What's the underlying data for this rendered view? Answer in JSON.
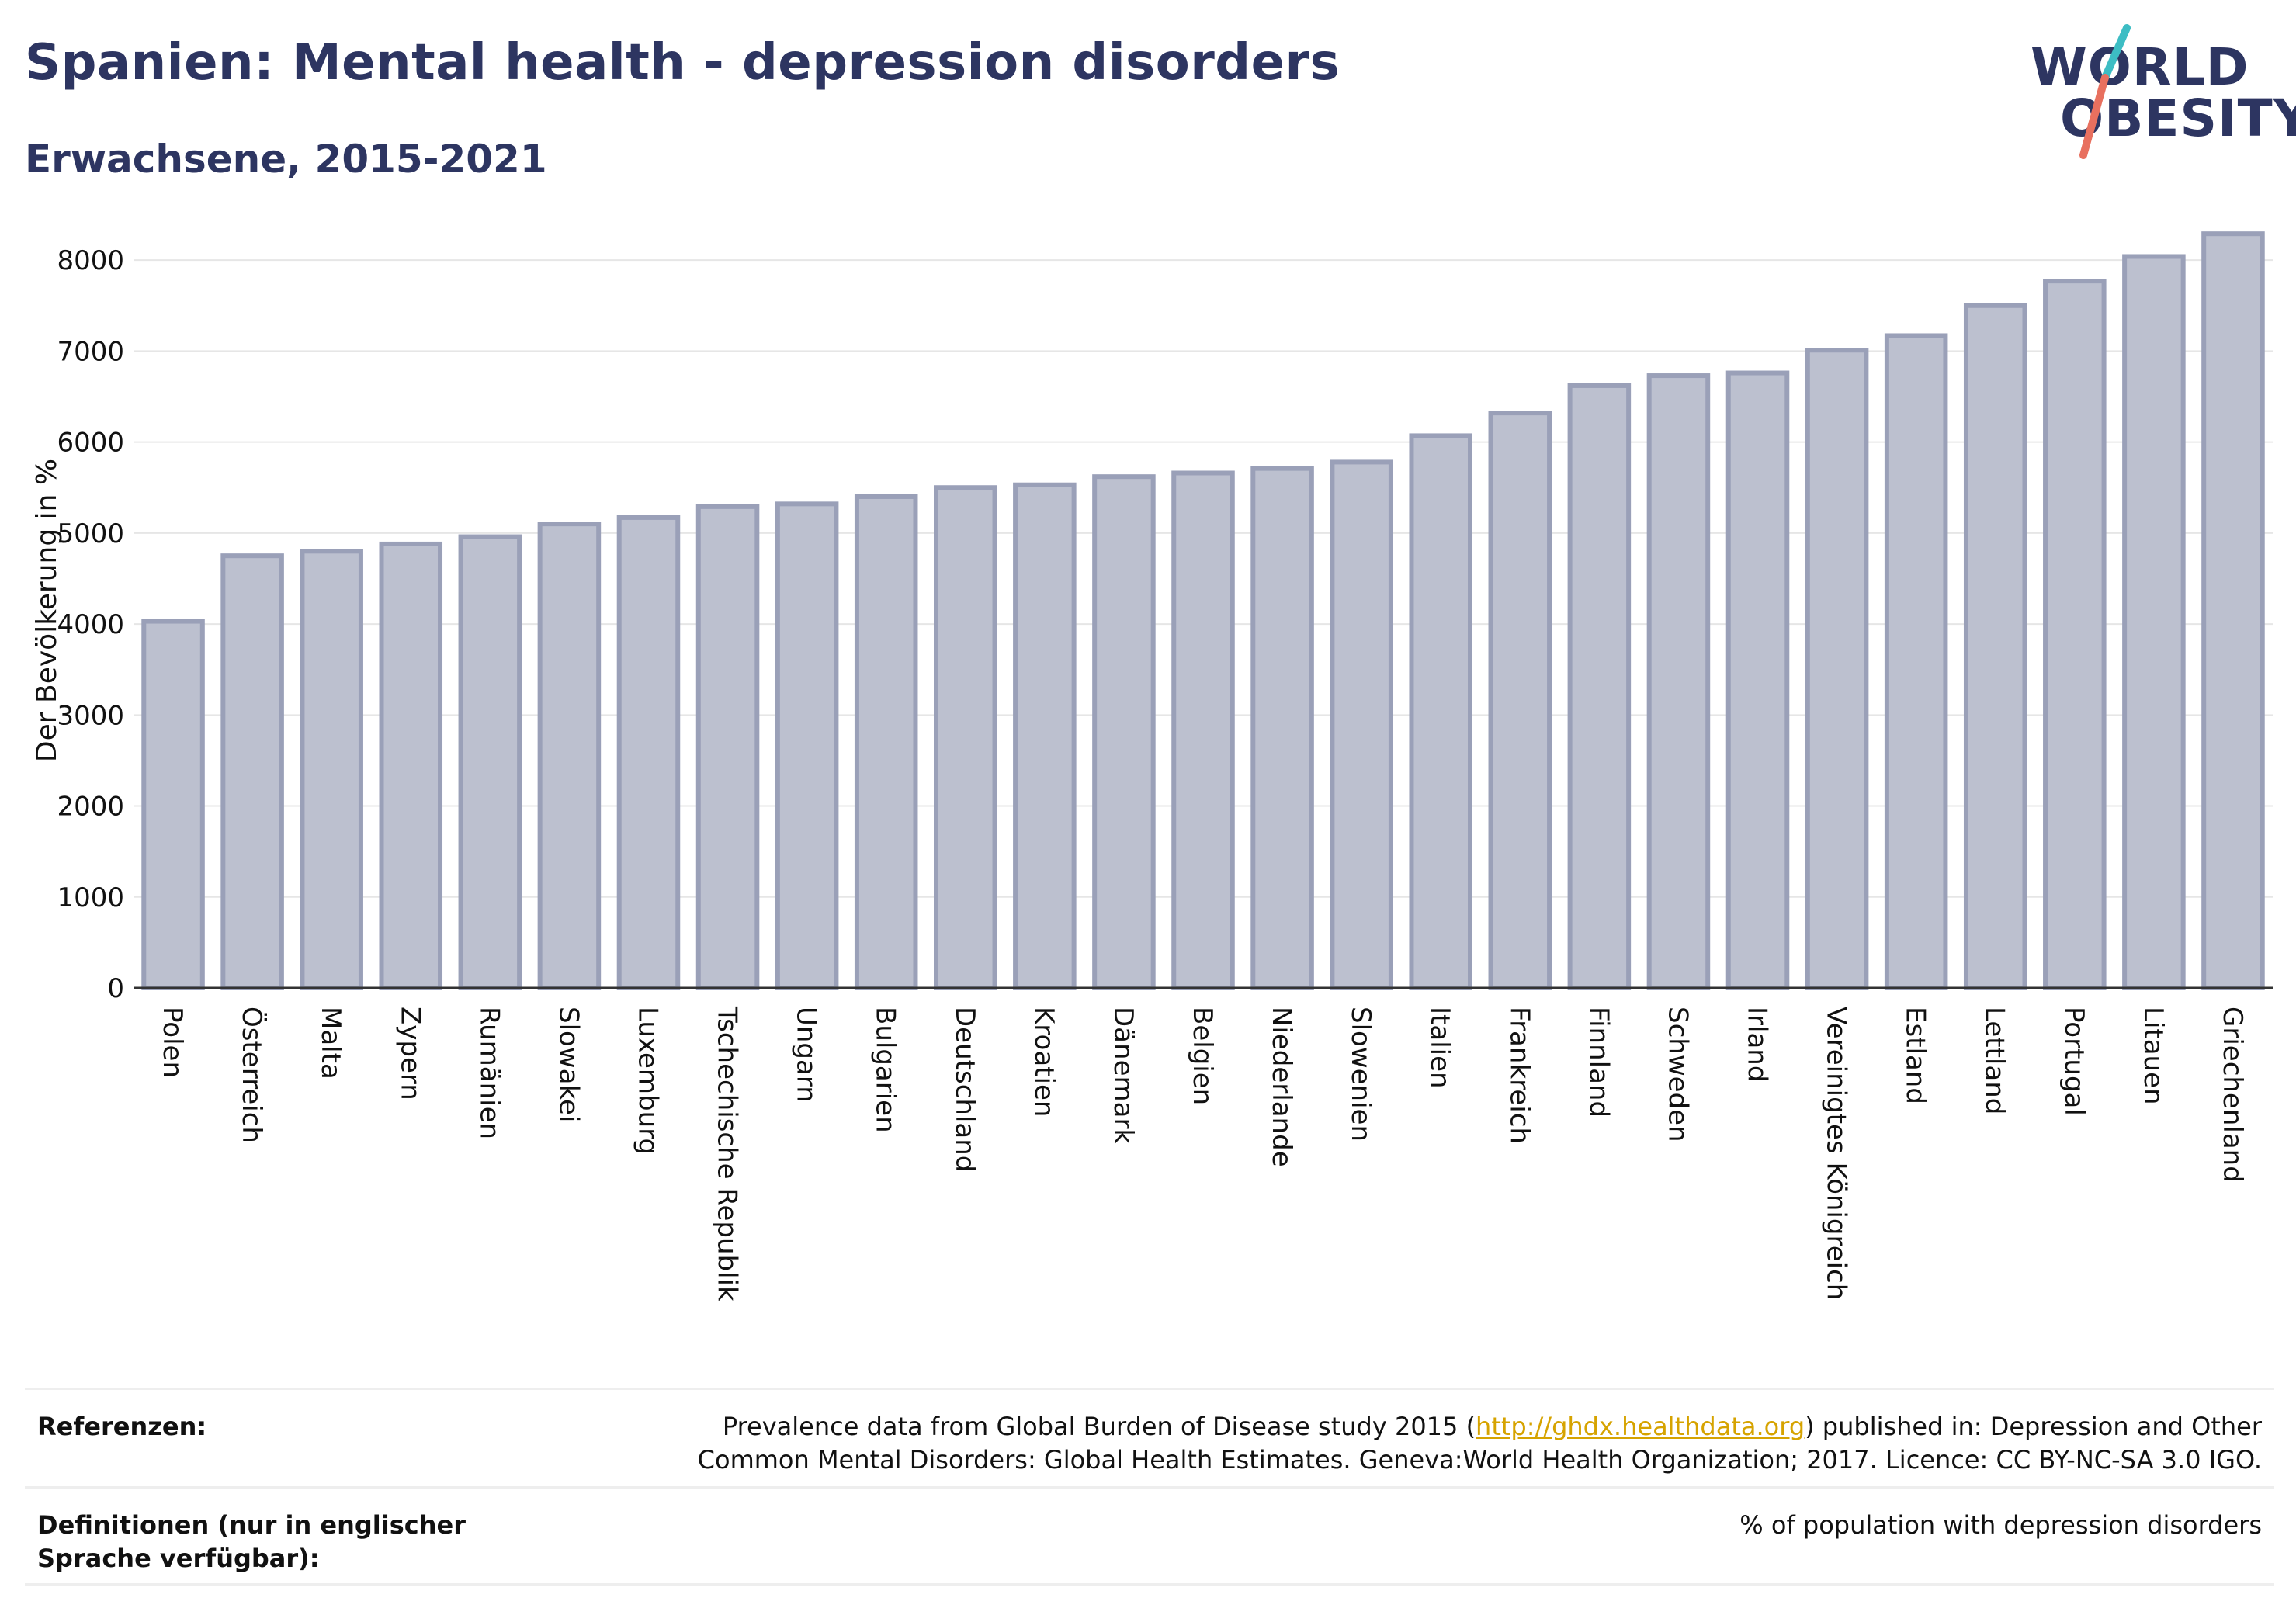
{
  "header": {
    "title": "Spanien: Mental health - depression disorders",
    "subtitle": "Erwachsene, 2015-2021"
  },
  "logo": {
    "line1": "WORLD",
    "line2": "OBESITY",
    "accent_teal": "#3dbdc4",
    "accent_red": "#e8705f"
  },
  "chart_data": {
    "type": "bar",
    "ylabel": "Der Bevölkerung in %",
    "ylim": [
      0,
      8300
    ],
    "yticks": [
      0,
      1000,
      2000,
      3000,
      4000,
      5000,
      6000,
      7000,
      8000
    ],
    "grid": true,
    "bar_color": "#bcc0cf",
    "bar_edge_color": "#9aa0b8",
    "categories": [
      "Polen",
      "Österreich",
      "Malta",
      "Zypern",
      "Rumänien",
      "Slowakei",
      "Luxemburg",
      "Tschechische Republik",
      "Ungarn",
      "Bulgarien",
      "Deutschland",
      "Kroatien",
      "Dänemark",
      "Belgien",
      "Niederlande",
      "Slowenien",
      "Italien",
      "Frankreich",
      "Finnland",
      "Schweden",
      "Irland",
      "Vereinigtes Königreich",
      "Estland",
      "Lettland",
      "Portugal",
      "Litauen",
      "Griechenland"
    ],
    "values": [
      4030,
      4750,
      4800,
      4880,
      4960,
      5100,
      5170,
      5290,
      5320,
      5400,
      5500,
      5530,
      5620,
      5660,
      5710,
      5780,
      6070,
      6320,
      6620,
      6730,
      6760,
      7010,
      7170,
      7500,
      7770,
      8040,
      8290
    ]
  },
  "references": {
    "label": "Referenzen:",
    "text_before": "Prevalence data from Global Burden of Disease study 2015 (",
    "link": "http://ghdx.healthdata.org",
    "text_after": ") published in: Depression and Other Common Mental Disorders: Global Health Estimates. Geneva:World Health Organization; 2017. Licence: CC BY-NC-SA 3.0 IGO."
  },
  "definitions": {
    "label": "Definitionen (nur in englischer Sprache verfügbar):",
    "text": "% of population with depression disorders"
  }
}
